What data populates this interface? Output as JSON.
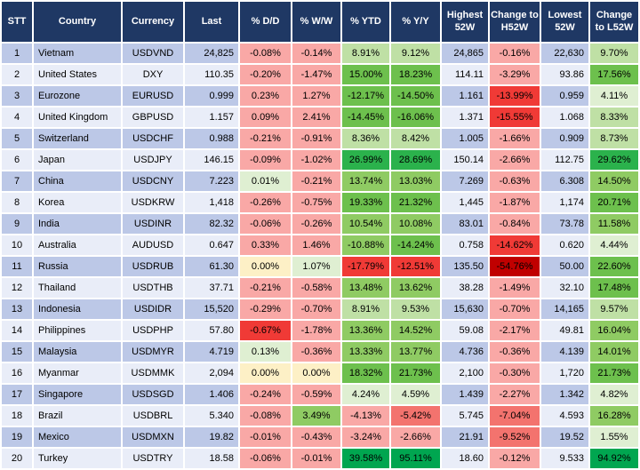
{
  "palette": {
    "header_bg": "#1F3864",
    "header_text": "#FFFFFF",
    "row_odd": "#BCC8E7",
    "row_even": "#E9EDF8",
    "gridline": "#FFFFFF",
    "cell_text": "#000000",
    "p": "#F9A8A6",
    "m": "#F3736E",
    "r": "#F03A36",
    "R": "#C00000",
    "y": "#FDF0C6",
    "g0": "#DFEFD2",
    "g1": "#BFE0A5",
    "g2": "#8FCB63",
    "g3": "#6DC04D",
    "g4": "#2BB24C",
    "g5": "#00A650"
  },
  "columns": [
    {
      "key": "stt",
      "label": "STT"
    },
    {
      "key": "country",
      "label": "Country"
    },
    {
      "key": "currency",
      "label": "Currency"
    },
    {
      "key": "last",
      "label": "Last"
    },
    {
      "key": "dd",
      "label": "% D/D"
    },
    {
      "key": "ww",
      "label": "% W/W"
    },
    {
      "key": "ytd",
      "label": "% YTD"
    },
    {
      "key": "yy",
      "label": "% Y/Y"
    },
    {
      "key": "high",
      "label": "Highest 52W"
    },
    {
      "key": "chg_h",
      "label": "Change to H52W"
    },
    {
      "key": "low",
      "label": "Lowest 52W"
    },
    {
      "key": "chg_l",
      "label": "Change to L52W"
    }
  ],
  "chart_data": {
    "type": "table",
    "title": "",
    "note": "FX heatmap table; color keys reference palette"
  },
  "rows": [
    {
      "stt": "1",
      "country": "Vietnam",
      "currency": "USDVND",
      "last": "24,825",
      "dd": {
        "v": "-0.08%",
        "c": "p"
      },
      "ww": {
        "v": "-0.14%",
        "c": "p"
      },
      "ytd": {
        "v": "8.91%",
        "c": "g1"
      },
      "yy": {
        "v": "9.12%",
        "c": "g1"
      },
      "high": "24,865",
      "chg_h": {
        "v": "-0.16%",
        "c": "p"
      },
      "low": "22,630",
      "chg_l": {
        "v": "9.70%",
        "c": "g1"
      }
    },
    {
      "stt": "2",
      "country": "United States",
      "currency": "DXY",
      "last": "110.35",
      "dd": {
        "v": "-0.20%",
        "c": "p"
      },
      "ww": {
        "v": "-1.47%",
        "c": "p"
      },
      "ytd": {
        "v": "15.00%",
        "c": "g3"
      },
      "yy": {
        "v": "18.23%",
        "c": "g3"
      },
      "high": "114.11",
      "chg_h": {
        "v": "-3.29%",
        "c": "p"
      },
      "low": "93.86",
      "chg_l": {
        "v": "17.56%",
        "c": "g3"
      }
    },
    {
      "stt": "3",
      "country": "Eurozone",
      "currency": "EURUSD",
      "last": "0.999",
      "dd": {
        "v": "0.23%",
        "c": "p"
      },
      "ww": {
        "v": "1.27%",
        "c": "p"
      },
      "ytd": {
        "v": "-12.17%",
        "c": "g3"
      },
      "yy": {
        "v": "-14.50%",
        "c": "g3"
      },
      "high": "1.161",
      "chg_h": {
        "v": "-13.99%",
        "c": "r"
      },
      "low": "0.959",
      "chg_l": {
        "v": "4.11%",
        "c": "g0"
      }
    },
    {
      "stt": "4",
      "country": "United Kingdom",
      "currency": "GBPUSD",
      "last": "1.157",
      "dd": {
        "v": "0.09%",
        "c": "p"
      },
      "ww": {
        "v": "2.41%",
        "c": "p"
      },
      "ytd": {
        "v": "-14.45%",
        "c": "g3"
      },
      "yy": {
        "v": "-16.06%",
        "c": "g3"
      },
      "high": "1.371",
      "chg_h": {
        "v": "-15.55%",
        "c": "r"
      },
      "low": "1.068",
      "chg_l": {
        "v": "8.33%",
        "c": "g1"
      }
    },
    {
      "stt": "5",
      "country": "Switzerland",
      "currency": "USDCHF",
      "last": "0.988",
      "dd": {
        "v": "-0.21%",
        "c": "p"
      },
      "ww": {
        "v": "-0.91%",
        "c": "p"
      },
      "ytd": {
        "v": "8.36%",
        "c": "g1"
      },
      "yy": {
        "v": "8.42%",
        "c": "g1"
      },
      "high": "1.005",
      "chg_h": {
        "v": "-1.66%",
        "c": "p"
      },
      "low": "0.909",
      "chg_l": {
        "v": "8.73%",
        "c": "g1"
      }
    },
    {
      "stt": "6",
      "country": "Japan",
      "currency": "USDJPY",
      "last": "146.15",
      "dd": {
        "v": "-0.09%",
        "c": "p"
      },
      "ww": {
        "v": "-1.02%",
        "c": "p"
      },
      "ytd": {
        "v": "26.99%",
        "c": "g4"
      },
      "yy": {
        "v": "28.69%",
        "c": "g4"
      },
      "high": "150.14",
      "chg_h": {
        "v": "-2.66%",
        "c": "p"
      },
      "low": "112.75",
      "chg_l": {
        "v": "29.62%",
        "c": "g4"
      }
    },
    {
      "stt": "7",
      "country": "China",
      "currency": "USDCNY",
      "last": "7.223",
      "dd": {
        "v": "0.01%",
        "c": "g0"
      },
      "ww": {
        "v": "-0.21%",
        "c": "p"
      },
      "ytd": {
        "v": "13.74%",
        "c": "g2"
      },
      "yy": {
        "v": "13.03%",
        "c": "g2"
      },
      "high": "7.269",
      "chg_h": {
        "v": "-0.63%",
        "c": "p"
      },
      "low": "6.308",
      "chg_l": {
        "v": "14.50%",
        "c": "g2"
      }
    },
    {
      "stt": "8",
      "country": "Korea",
      "currency": "USDKRW",
      "last": "1,418",
      "dd": {
        "v": "-0.26%",
        "c": "p"
      },
      "ww": {
        "v": "-0.75%",
        "c": "p"
      },
      "ytd": {
        "v": "19.33%",
        "c": "g3"
      },
      "yy": {
        "v": "21.32%",
        "c": "g3"
      },
      "high": "1,445",
      "chg_h": {
        "v": "-1.87%",
        "c": "p"
      },
      "low": "1,174",
      "chg_l": {
        "v": "20.71%",
        "c": "g3"
      }
    },
    {
      "stt": "9",
      "country": "India",
      "currency": "USDINR",
      "last": "82.32",
      "dd": {
        "v": "-0.06%",
        "c": "p"
      },
      "ww": {
        "v": "-0.26%",
        "c": "p"
      },
      "ytd": {
        "v": "10.54%",
        "c": "g2"
      },
      "yy": {
        "v": "10.08%",
        "c": "g2"
      },
      "high": "83.01",
      "chg_h": {
        "v": "-0.84%",
        "c": "p"
      },
      "low": "73.78",
      "chg_l": {
        "v": "11.58%",
        "c": "g2"
      }
    },
    {
      "stt": "10",
      "country": "Australia",
      "currency": "AUDUSD",
      "last": "0.647",
      "dd": {
        "v": "0.33%",
        "c": "p"
      },
      "ww": {
        "v": "1.46%",
        "c": "p"
      },
      "ytd": {
        "v": "-10.88%",
        "c": "g2"
      },
      "yy": {
        "v": "-14.24%",
        "c": "g3"
      },
      "high": "0.758",
      "chg_h": {
        "v": "-14.62%",
        "c": "r"
      },
      "low": "0.620",
      "chg_l": {
        "v": "4.44%",
        "c": "g0"
      }
    },
    {
      "stt": "11",
      "country": "Russia",
      "currency": "USDRUB",
      "last": "61.30",
      "dd": {
        "v": "0.00%",
        "c": "y"
      },
      "ww": {
        "v": "1.07%",
        "c": "g0"
      },
      "ytd": {
        "v": "-17.79%",
        "c": "r"
      },
      "yy": {
        "v": "-12.51%",
        "c": "r"
      },
      "high": "135.50",
      "chg_h": {
        "v": "-54.76%",
        "c": "R"
      },
      "low": "50.00",
      "chg_l": {
        "v": "22.60%",
        "c": "g3"
      }
    },
    {
      "stt": "12",
      "country": "Thailand",
      "currency": "USDTHB",
      "last": "37.71",
      "dd": {
        "v": "-0.21%",
        "c": "p"
      },
      "ww": {
        "v": "-0.58%",
        "c": "p"
      },
      "ytd": {
        "v": "13.48%",
        "c": "g2"
      },
      "yy": {
        "v": "13.62%",
        "c": "g2"
      },
      "high": "38.28",
      "chg_h": {
        "v": "-1.49%",
        "c": "p"
      },
      "low": "32.10",
      "chg_l": {
        "v": "17.48%",
        "c": "g3"
      }
    },
    {
      "stt": "13",
      "country": "Indonesia",
      "currency": "USDIDR",
      "last": "15,520",
      "dd": {
        "v": "-0.29%",
        "c": "p"
      },
      "ww": {
        "v": "-0.70%",
        "c": "p"
      },
      "ytd": {
        "v": "8.91%",
        "c": "g1"
      },
      "yy": {
        "v": "9.53%",
        "c": "g1"
      },
      "high": "15,630",
      "chg_h": {
        "v": "-0.70%",
        "c": "p"
      },
      "low": "14,165",
      "chg_l": {
        "v": "9.57%",
        "c": "g1"
      }
    },
    {
      "stt": "14",
      "country": "Philippines",
      "currency": "USDPHP",
      "last": "57.80",
      "dd": {
        "v": "-0.67%",
        "c": "r"
      },
      "ww": {
        "v": "-1.78%",
        "c": "p"
      },
      "ytd": {
        "v": "13.36%",
        "c": "g2"
      },
      "yy": {
        "v": "14.52%",
        "c": "g2"
      },
      "high": "59.08",
      "chg_h": {
        "v": "-2.17%",
        "c": "p"
      },
      "low": "49.81",
      "chg_l": {
        "v": "16.04%",
        "c": "g2"
      }
    },
    {
      "stt": "15",
      "country": "Malaysia",
      "currency": "USDMYR",
      "last": "4.719",
      "dd": {
        "v": "0.13%",
        "c": "g0"
      },
      "ww": {
        "v": "-0.36%",
        "c": "p"
      },
      "ytd": {
        "v": "13.33%",
        "c": "g2"
      },
      "yy": {
        "v": "13.77%",
        "c": "g2"
      },
      "high": "4.736",
      "chg_h": {
        "v": "-0.36%",
        "c": "p"
      },
      "low": "4.139",
      "chg_l": {
        "v": "14.01%",
        "c": "g2"
      }
    },
    {
      "stt": "16",
      "country": "Myanmar",
      "currency": "USDMMK",
      "last": "2,094",
      "dd": {
        "v": "0.00%",
        "c": "y"
      },
      "ww": {
        "v": "0.00%",
        "c": "y"
      },
      "ytd": {
        "v": "18.32%",
        "c": "g3"
      },
      "yy": {
        "v": "21.73%",
        "c": "g3"
      },
      "high": "2,100",
      "chg_h": {
        "v": "-0.30%",
        "c": "p"
      },
      "low": "1,720",
      "chg_l": {
        "v": "21.73%",
        "c": "g3"
      }
    },
    {
      "stt": "17",
      "country": "Singapore",
      "currency": "USDSGD",
      "last": "1.406",
      "dd": {
        "v": "-0.24%",
        "c": "p"
      },
      "ww": {
        "v": "-0.59%",
        "c": "p"
      },
      "ytd": {
        "v": "4.24%",
        "c": "g0"
      },
      "yy": {
        "v": "4.59%",
        "c": "g0"
      },
      "high": "1.439",
      "chg_h": {
        "v": "-2.27%",
        "c": "p"
      },
      "low": "1.342",
      "chg_l": {
        "v": "4.82%",
        "c": "g0"
      }
    },
    {
      "stt": "18",
      "country": "Brazil",
      "currency": "USDBRL",
      "last": "5.340",
      "dd": {
        "v": "-0.08%",
        "c": "p"
      },
      "ww": {
        "v": "3.49%",
        "c": "g2"
      },
      "ytd": {
        "v": "-4.13%",
        "c": "p"
      },
      "yy": {
        "v": "-5.42%",
        "c": "m"
      },
      "high": "5.745",
      "chg_h": {
        "v": "-7.04%",
        "c": "m"
      },
      "low": "4.593",
      "chg_l": {
        "v": "16.28%",
        "c": "g2"
      }
    },
    {
      "stt": "19",
      "country": "Mexico",
      "currency": "USDMXN",
      "last": "19.82",
      "dd": {
        "v": "-0.01%",
        "c": "p"
      },
      "ww": {
        "v": "-0.43%",
        "c": "p"
      },
      "ytd": {
        "v": "-3.24%",
        "c": "p"
      },
      "yy": {
        "v": "-2.66%",
        "c": "p"
      },
      "high": "21.91",
      "chg_h": {
        "v": "-9.52%",
        "c": "m"
      },
      "low": "19.52",
      "chg_l": {
        "v": "1.55%",
        "c": "g0"
      }
    },
    {
      "stt": "20",
      "country": "Turkey",
      "currency": "USDTRY",
      "last": "18.58",
      "dd": {
        "v": "-0.06%",
        "c": "p"
      },
      "ww": {
        "v": "-0.01%",
        "c": "p"
      },
      "ytd": {
        "v": "39.58%",
        "c": "g5"
      },
      "yy": {
        "v": "95.11%",
        "c": "g5"
      },
      "high": "18.60",
      "chg_h": {
        "v": "-0.12%",
        "c": "p"
      },
      "low": "9.533",
      "chg_l": {
        "v": "94.92%",
        "c": "g5"
      }
    }
  ]
}
